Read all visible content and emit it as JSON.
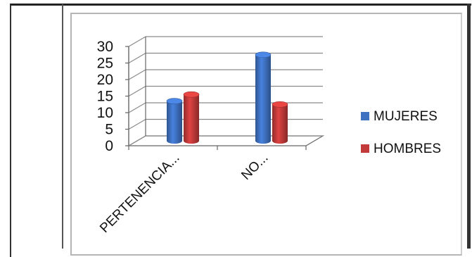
{
  "chart_data": {
    "type": "bar",
    "style": "3d-clustered-cylinder",
    "categories": [
      "PERTENENCIA...",
      "NO..."
    ],
    "series": [
      {
        "name": "MUJERES",
        "values": [
          12,
          26
        ],
        "color": "#3f71c1"
      },
      {
        "name": "HOMBRES",
        "values": [
          14,
          11
        ],
        "color": "#c23a39"
      }
    ],
    "ylim": [
      0,
      30
    ],
    "yticks": [
      0,
      5,
      10,
      15,
      20,
      25,
      30
    ],
    "grid": true,
    "legend": "right"
  },
  "colors": {
    "gridline": "#8a8a8a",
    "axis": "#666666"
  }
}
